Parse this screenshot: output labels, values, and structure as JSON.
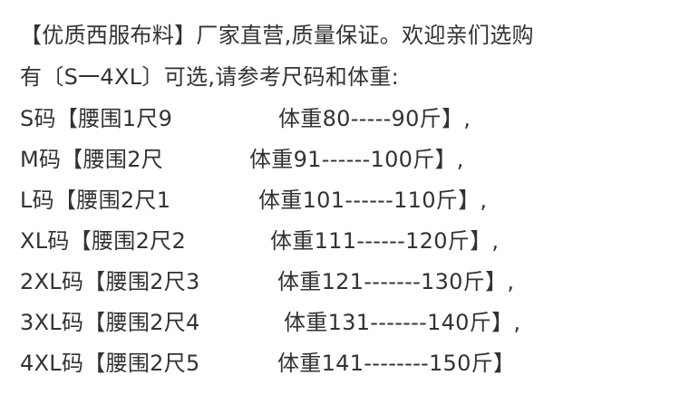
{
  "intro": [
    "【优质西服布料】厂家直营,质量保证。欢迎亲们选购",
    "有〔S一4XL〕可选,请参考尺码和体重:"
  ],
  "sizes": [
    {
      "size": "S码【腰围1尺9",
      "weight": "体重80-----90斤】,"
    },
    {
      "size": "M码【腰围2尺",
      "weight": "体重91------100斤】,"
    },
    {
      "size": "L码【腰围2尺1",
      "weight": "体重101------110斤】,"
    },
    {
      "size": "XL码【腰围2尺2",
      "weight": "体重111------120斤】,"
    },
    {
      "size": "2XL码【腰围2尺3",
      "weight": "体重121-------130斤】,"
    },
    {
      "size": "3XL码【腰围2尺4",
      "weight": "体重131-------140斤】,"
    },
    {
      "size": "4XL码【腰围2尺5",
      "weight": "体重141--------150斤】"
    }
  ]
}
